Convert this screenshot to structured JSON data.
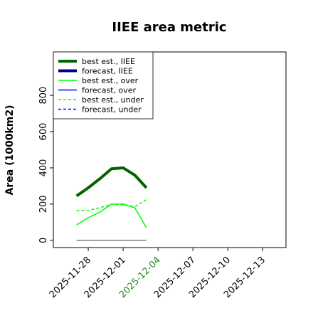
{
  "chart_data": {
    "type": "line",
    "title": "IIEE area metric",
    "ylabel": "Area (1000km2)",
    "x": [
      "2025-11-27",
      "2025-11-28",
      "2025-11-29",
      "2025-11-30",
      "2025-12-01",
      "2025-12-02",
      "2025-12-03"
    ],
    "series": [
      {
        "name": "best est., IIEE",
        "color": "#006400",
        "width": 4,
        "dash": "none",
        "values": [
          245,
          290,
          340,
          395,
          400,
          360,
          290
        ]
      },
      {
        "name": "forecast, IIEE",
        "color": "#00008b",
        "width": 4,
        "dash": "none",
        "values": [
          null,
          null,
          null,
          null,
          null,
          null,
          null
        ]
      },
      {
        "name": "best est., over",
        "color": "#00ff00",
        "width": 1.5,
        "dash": "none",
        "values": [
          85,
          125,
          155,
          200,
          200,
          180,
          70
        ]
      },
      {
        "name": "forecast, over",
        "color": "#0000ff",
        "width": 1.5,
        "dash": "none",
        "values": [
          null,
          null,
          null,
          null,
          null,
          null,
          null
        ]
      },
      {
        "name": "best est., under",
        "color": "#00ff00",
        "width": 1.5,
        "dash": "4,3",
        "values": [
          163,
          165,
          180,
          200,
          195,
          185,
          225
        ]
      },
      {
        "name": "forecast, under",
        "color": "#0000ff",
        "width": 1.5,
        "dash": "4,3",
        "values": [
          null,
          null,
          null,
          null,
          null,
          null,
          null
        ]
      }
    ],
    "xlim": [
      "2025-11-25",
      "2025-12-15"
    ],
    "xticks": [
      "2025-11-28",
      "2025-12-01",
      "2025-12-04",
      "2025-12-07",
      "2025-12-10",
      "2025-12-13"
    ],
    "highlight_xtick": "2025-12-04",
    "highlight_color": "#228b22",
    "ylim": [
      -40,
      1040
    ],
    "yticks": [
      0,
      200,
      400,
      600,
      800
    ],
    "legend": "upper left",
    "grid": false
  }
}
